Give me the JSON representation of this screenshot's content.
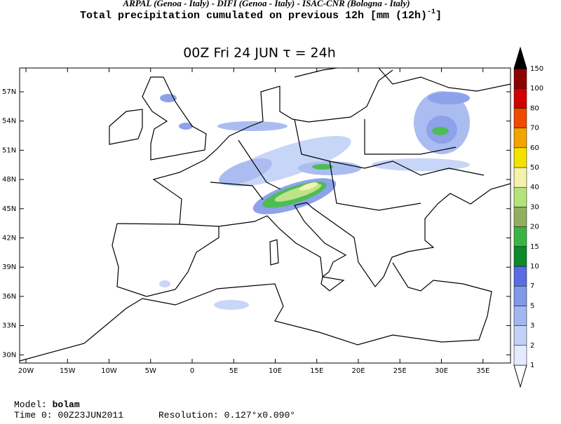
{
  "header": {
    "credits": "ARPAL (Genoa - Italy)  -  DIFI (Genoa - Italy)  -  ISAC-CNR (Bologna - Italy)",
    "title": "Total precipitation cumulated on previous 12h [mm (12h)",
    "title_sup": "-1",
    "title_end": "]"
  },
  "map": {
    "title": "00Z Fri 24 JUN  τ = 24h",
    "lat_labels": [
      "57N",
      "54N",
      "51N",
      "48N",
      "45N",
      "42N",
      "39N",
      "36N",
      "33N",
      "30N"
    ],
    "lon_labels": [
      "20W",
      "15W",
      "10W",
      "5W",
      "0",
      "5E",
      "10E",
      "15E",
      "20E",
      "25E",
      "30E",
      "35E"
    ]
  },
  "colorbar": {
    "levels": [
      1,
      2,
      3,
      5,
      7,
      10,
      15,
      20,
      30,
      40,
      50,
      60,
      70,
      80,
      100,
      150
    ],
    "colors": [
      "#ffffff",
      "#e4ebff",
      "#c2d1f7",
      "#a3b6ef",
      "#8199e8",
      "#5a6ce0",
      "#0c8a2c",
      "#3cb445",
      "#90b060",
      "#b6e27a",
      "#f2f2aa",
      "#f2e200",
      "#f2a400",
      "#f04a00",
      "#d00000",
      "#8c0000",
      "#000000"
    ]
  },
  "footer": {
    "model_label": "Model:",
    "model": "bolam",
    "time_label": "Time 0:",
    "time": "00Z23JUN2011",
    "res_label": "Resolution:",
    "resolution": "0.127°x0.090°"
  }
}
